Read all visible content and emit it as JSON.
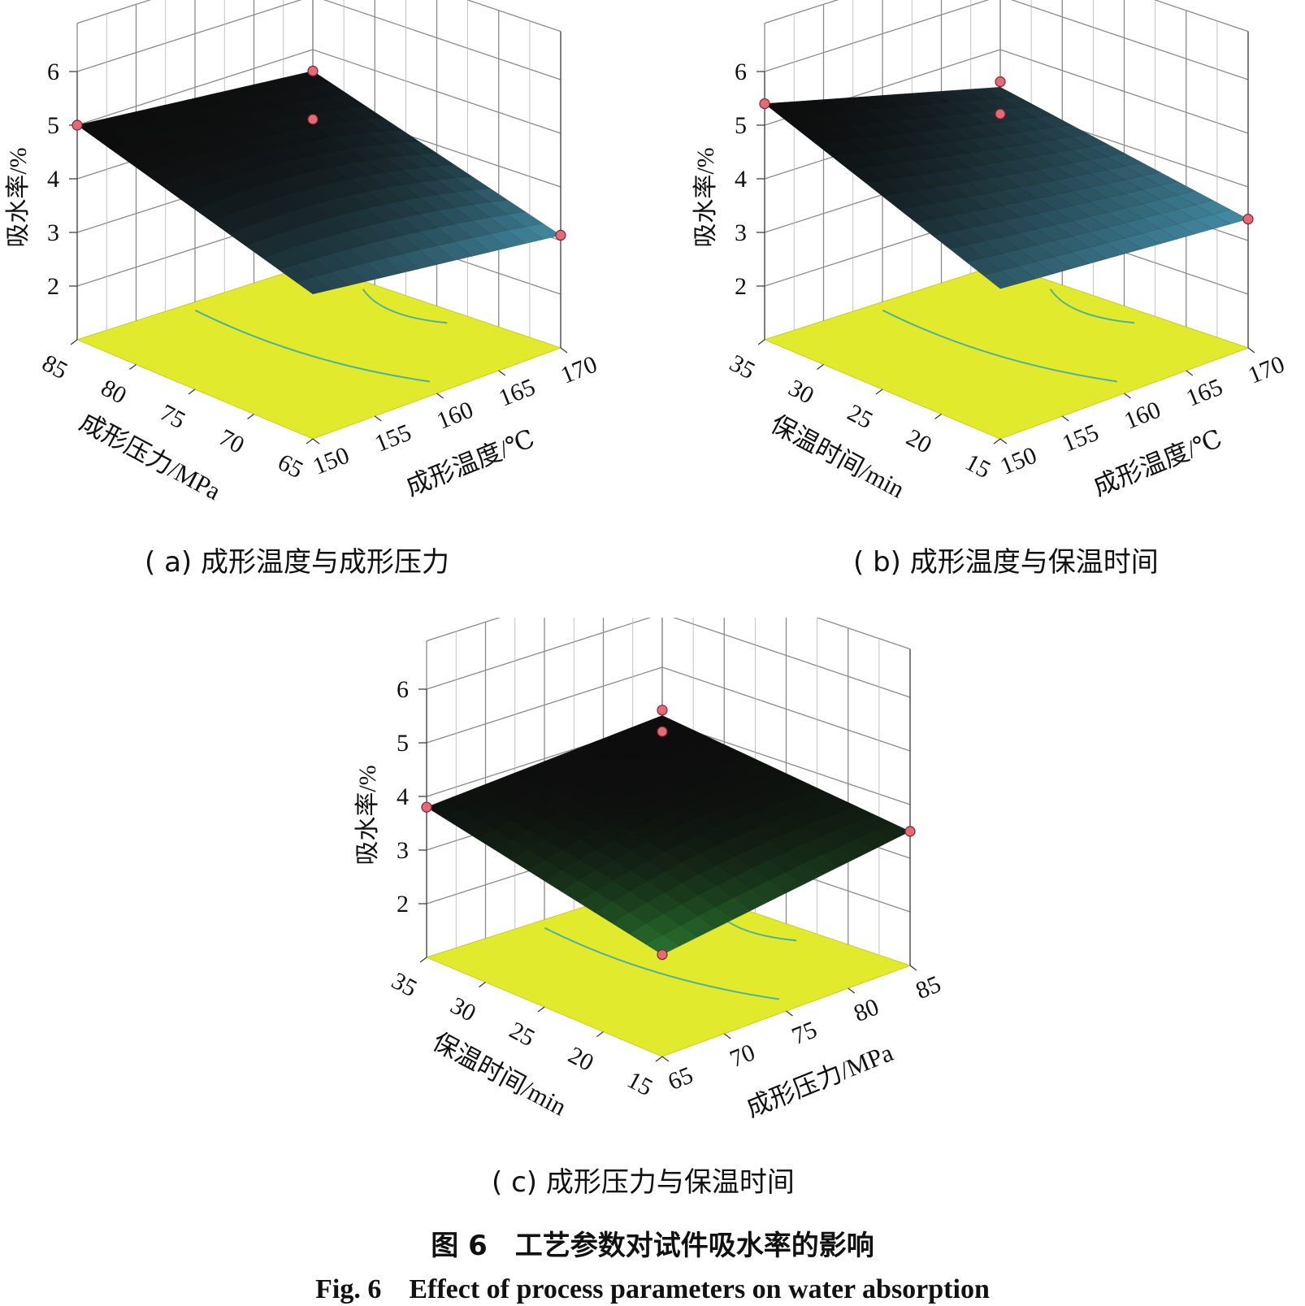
{
  "figure": {
    "caption_cn": "图 6　工艺参数对试件吸水率的影响",
    "caption_en": "Fig. 6　Effect of process parameters on water absorption"
  },
  "colors": {
    "floor": "#e2ea2d",
    "contour": "#4cb39a",
    "grid": "#8a8a8a",
    "point": "#e26b7a",
    "surface_dark": "#0d0d0d",
    "surface_green": "#2f8a36",
    "surface_blue": "#4fa6c4"
  },
  "chart_data": [
    {
      "id": "a",
      "type": "surface",
      "caption": "( a) 成形温度与成形压力",
      "zlabel": "吸水率/%",
      "z_ticks": [
        "2",
        "3",
        "4",
        "5",
        "6"
      ],
      "zlim": [
        1,
        6
      ],
      "left_axis": {
        "label": "成形压力/MPa",
        "ticks": [
          "85",
          "80",
          "75",
          "70",
          "65"
        ]
      },
      "right_axis": {
        "label": "成形温度/℃",
        "ticks": [
          "150",
          "155",
          "160",
          "165",
          "170"
        ]
      },
      "surface_tint": "#4fa6c4",
      "design_points": [
        {
          "left": 85,
          "right": 150,
          "z": 5.0
        },
        {
          "left": 65,
          "right": 170,
          "z": 4.6
        },
        {
          "left": 65,
          "right": 170,
          "z": 3.7
        },
        {
          "left": 65,
          "right": 170,
          "z": 3.1
        }
      ],
      "response": {
        "back": 4.6,
        "left": 5.0,
        "right": 3.1,
        "front": 3.7,
        "mid": 4.3
      }
    },
    {
      "id": "b",
      "type": "surface",
      "caption": "( b) 成形温度与保温时间",
      "zlabel": "吸水率/%",
      "z_ticks": [
        "2",
        "3",
        "4",
        "5",
        "6"
      ],
      "zlim": [
        1,
        6
      ],
      "left_axis": {
        "label": "保温时间/min",
        "ticks": [
          "35",
          "30",
          "25",
          "20",
          "15"
        ]
      },
      "right_axis": {
        "label": "成形温度/℃",
        "ticks": [
          "150",
          "155",
          "160",
          "165",
          "170"
        ]
      },
      "surface_tint": "#4fa6c4",
      "design_points": [
        {
          "left": 35,
          "right": 150,
          "z": 5.4
        },
        {
          "left": 15,
          "right": 170,
          "z": 4.4
        },
        {
          "left": 15,
          "right": 170,
          "z": 3.8
        },
        {
          "left": 15,
          "right": 170,
          "z": 3.4
        }
      ],
      "response": {
        "back": 4.3,
        "left": 5.4,
        "right": 3.4,
        "front": 3.8,
        "mid": 4.2
      }
    },
    {
      "id": "c",
      "type": "surface",
      "caption": "( c) 成形压力与保温时间",
      "zlabel": "吸水率/%",
      "z_ticks": [
        "2",
        "3",
        "4",
        "5",
        "6"
      ],
      "zlim": [
        1,
        6
      ],
      "left_axis": {
        "label": "保温时间/min",
        "ticks": [
          "35",
          "30",
          "25",
          "20",
          "15"
        ]
      },
      "right_axis": {
        "label": "成形压力/MPa",
        "ticks": [
          "65",
          "70",
          "75",
          "80",
          "85"
        ]
      },
      "surface_tint": "#2f8a36",
      "design_points": [
        {
          "left": 35,
          "right": 65,
          "z": 3.8
        },
        {
          "left": 15,
          "right": 85,
          "z": 4.2
        },
        {
          "left": 15,
          "right": 85,
          "z": 3.8
        },
        {
          "left": 15,
          "right": 85,
          "z": 3.5
        },
        {
          "left": 15,
          "right": 65,
          "z": 2.9
        }
      ],
      "response": {
        "back": 4.1,
        "left": 3.8,
        "right": 3.5,
        "front": 2.9,
        "mid": 3.8
      }
    }
  ]
}
